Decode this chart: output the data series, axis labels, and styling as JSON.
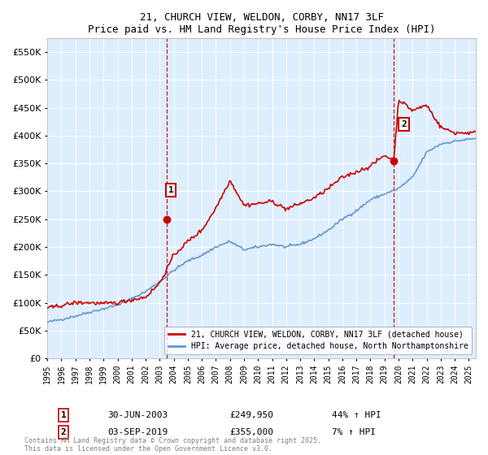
{
  "title": "21, CHURCH VIEW, WELDON, CORBY, NN17 3LF",
  "subtitle": "Price paid vs. HM Land Registry's House Price Index (HPI)",
  "legend_line1": "21, CHURCH VIEW, WELDON, CORBY, NN17 3LF (detached house)",
  "legend_line2": "HPI: Average price, detached house, North Northamptonshire",
  "annotation1_label": "1",
  "annotation1_date": "30-JUN-2003",
  "annotation1_price": "£249,950",
  "annotation1_hpi": "44% ↑ HPI",
  "annotation2_label": "2",
  "annotation2_date": "03-SEP-2019",
  "annotation2_price": "£355,000",
  "annotation2_hpi": "7% ↑ HPI",
  "footer": "Contains HM Land Registry data © Crown copyright and database right 2025.\nThis data is licensed under the Open Government Licence v3.0.",
  "red_color": "#cc0000",
  "blue_color": "#6699cc",
  "bg_color": "#ddeeff",
  "ylim": [
    0,
    575000
  ],
  "yticks": [
    0,
    50000,
    100000,
    150000,
    200000,
    250000,
    300000,
    350000,
    400000,
    450000,
    500000,
    550000
  ],
  "xlim_start": 1995.0,
  "xlim_end": 2025.5,
  "purchase1_x": 2003.5,
  "purchase1_y": 249950,
  "purchase2_x": 2019.67,
  "purchase2_y": 355000,
  "vline1_x": 2003.5,
  "vline2_x": 2019.67,
  "hpi_base_years": [
    1995.0,
    1996.0,
    1997.0,
    1998.0,
    1999.0,
    2000.0,
    2001.0,
    2002.0,
    2003.0,
    2004.0,
    2005.0,
    2006.0,
    2007.0,
    2008.0,
    2009.0,
    2010.0,
    2011.0,
    2012.0,
    2013.0,
    2014.0,
    2015.0,
    2016.0,
    2017.0,
    2018.0,
    2019.0,
    2020.0,
    2021.0,
    2022.0,
    2023.0,
    2024.0,
    2025.5
  ],
  "hpi_base_vals": [
    65000,
    70000,
    76000,
    83000,
    89000,
    96000,
    107000,
    120000,
    138000,
    158000,
    175000,
    185000,
    200000,
    210000,
    195000,
    200000,
    205000,
    200000,
    205000,
    215000,
    230000,
    250000,
    265000,
    285000,
    295000,
    305000,
    325000,
    370000,
    385000,
    390000,
    395000
  ],
  "red_base_years": [
    1995.0,
    1996.0,
    1997.0,
    1998.0,
    1999.0,
    2000.0,
    2001.0,
    2002.0,
    2003.0,
    2004.0,
    2005.0,
    2006.0,
    2007.0,
    2008.0,
    2009.0,
    2010.0,
    2011.0,
    2012.0,
    2013.0,
    2014.0,
    2015.0,
    2016.0,
    2017.0,
    2018.0,
    2019.0,
    2019.67,
    2020.0,
    2021.0,
    2022.0,
    2023.0,
    2024.0,
    2025.5
  ],
  "red_base_vals": [
    90000,
    95000,
    100000,
    100000,
    98000,
    100000,
    105000,
    110000,
    135000,
    185000,
    210000,
    230000,
    270000,
    320000,
    275000,
    278000,
    282000,
    268000,
    278000,
    288000,
    305000,
    325000,
    335000,
    345000,
    365000,
    355000,
    465000,
    445000,
    455000,
    415000,
    405000,
    405000
  ]
}
